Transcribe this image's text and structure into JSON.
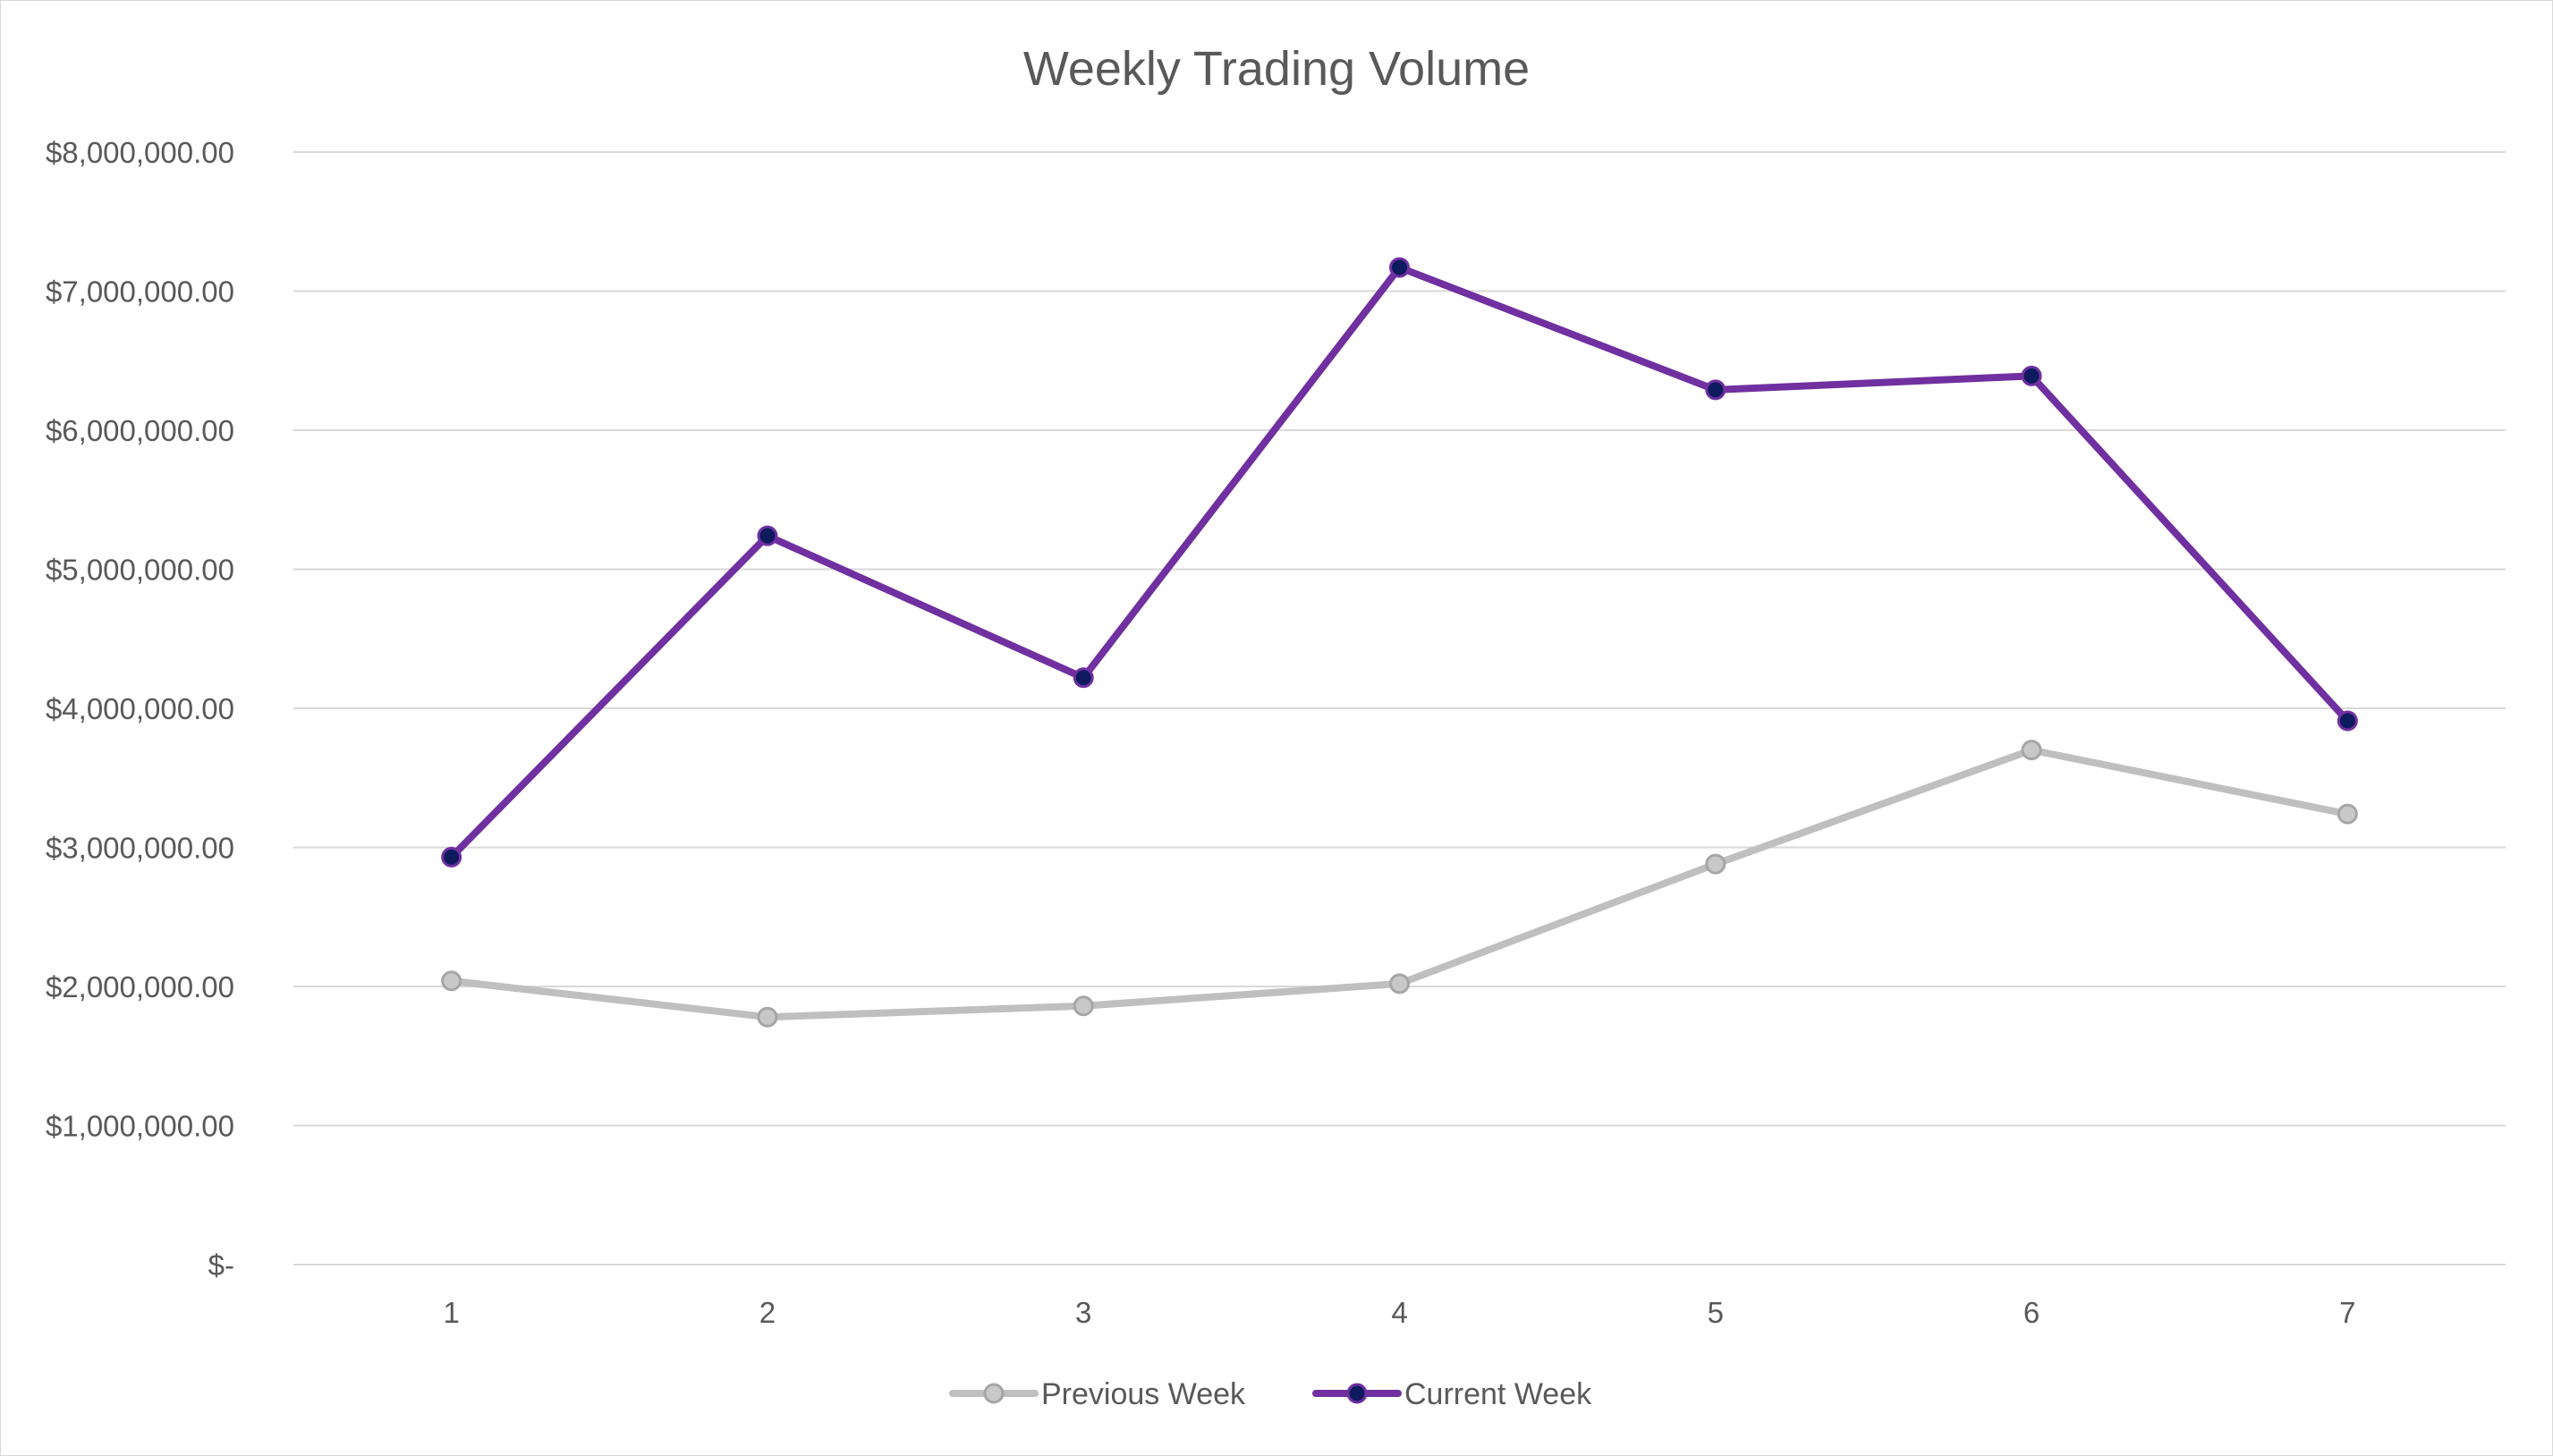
{
  "chart_data": {
    "type": "line",
    "title": "Weekly Trading Volume",
    "xlabel": "",
    "ylabel": "",
    "categories": [
      "1",
      "2",
      "3",
      "4",
      "5",
      "6",
      "7"
    ],
    "ylim": [
      0,
      8000000
    ],
    "y_ticks": [
      0,
      1000000,
      2000000,
      3000000,
      4000000,
      5000000,
      6000000,
      7000000,
      8000000
    ],
    "y_tick_labels": [
      "$-",
      "$1,000,000.00",
      "$2,000,000.00",
      "$3,000,000.00",
      "$4,000,000.00",
      "$5,000,000.00",
      "$6,000,000.00",
      "$7,000,000.00",
      "$8,000,000.00"
    ],
    "grid": true,
    "legend_position": "bottom",
    "series": [
      {
        "name": "Previous Week",
        "color": "#bfbfbf",
        "marker_fill": "#c8c8c8",
        "marker_stroke": "#a6a6a6",
        "values": [
          2040000,
          1780000,
          1860000,
          2020000,
          2880000,
          3700000,
          3240000
        ]
      },
      {
        "name": "Current Week",
        "color": "#7030a0",
        "marker_fill": "#0e1a5e",
        "marker_stroke": "#7030a0",
        "values": [
          2930000,
          5240000,
          4220000,
          7170000,
          6290000,
          6390000,
          3910000
        ]
      }
    ]
  }
}
